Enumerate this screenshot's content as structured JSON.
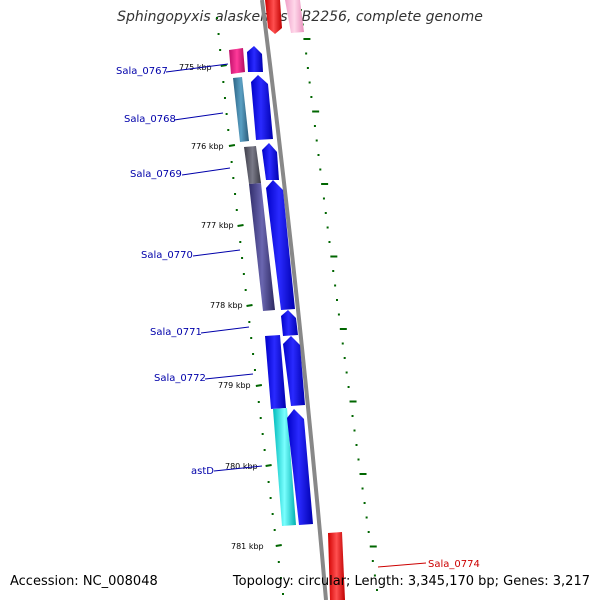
{
  "title": "Sphingopyxis alaskensis RB2256, complete genome",
  "footer": {
    "accession": "Accession: NC_008048",
    "topology": "Topology: circular; Length: 3,345,170 bp; Genes: 3,217"
  },
  "colors": {
    "strand_plus": "#0000ee",
    "label_blue": "#0000aa",
    "label_red": "#cc0000",
    "tick_green": "#006600",
    "backbone": "#888888"
  },
  "kbp_ticks": [
    "775 kbp",
    "776 kbp",
    "777 kbp",
    "778 kbp",
    "779 kbp",
    "780 kbp",
    "781 kbp"
  ],
  "genes": [
    {
      "name": "Sala_0767",
      "category_color": "#e0147a"
    },
    {
      "name": "Sala_0768",
      "category_color": "#3c7898"
    },
    {
      "name": "Sala_0769",
      "category_color": "#555566"
    },
    {
      "name": "Sala_0770",
      "category_color": "#403c80"
    },
    {
      "name": "Sala_0771",
      "category_color": "#0000ee"
    },
    {
      "name": "Sala_0772",
      "category_color": "#0000ee"
    },
    {
      "name": "astD",
      "category_color": "#00e0e0"
    },
    {
      "name": "Sala_0774",
      "category_color": "#ee0000"
    }
  ]
}
